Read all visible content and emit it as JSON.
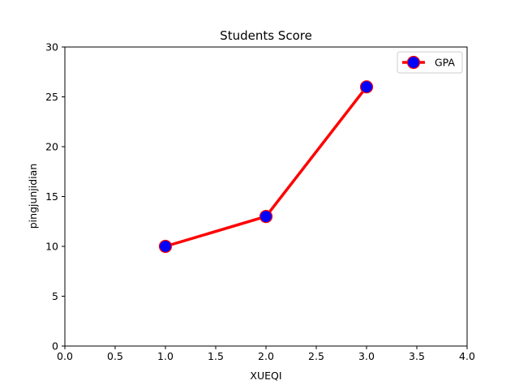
{
  "chart_data": {
    "type": "line",
    "title": "Students Score",
    "xlabel": "XUEQI",
    "ylabel": "pingjunjidian",
    "xlim": [
      0,
      4
    ],
    "ylim": [
      0,
      30
    ],
    "xticks": [
      "0.0",
      "0.5",
      "1.0",
      "1.5",
      "2.0",
      "2.5",
      "3.0",
      "3.5",
      "4.0"
    ],
    "yticks": [
      "0",
      "5",
      "10",
      "15",
      "20",
      "25",
      "30"
    ],
    "grid": false,
    "legend_position": "top-right",
    "series": [
      {
        "name": "GPA",
        "x": [
          1,
          2,
          3
        ],
        "y": [
          10,
          13,
          26
        ],
        "line_color": "#ff0000",
        "marker_face_color": "#0000ff",
        "marker_edge_color": "#ff0000"
      }
    ]
  }
}
